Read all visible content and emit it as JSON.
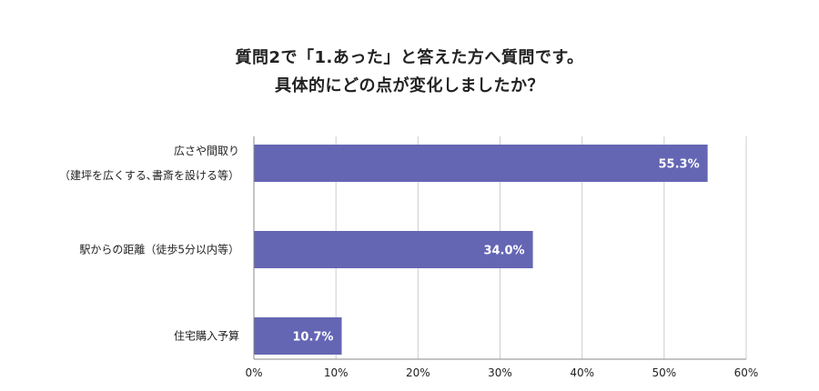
{
  "chart_data": {
    "type": "bar",
    "orientation": "horizontal",
    "title": [
      "質問2で「1.あった」と答えた方へ質問です。",
      "具体的にどの点が変化しましたか？"
    ],
    "categories": [
      [
        "広さや間取り",
        "（建坪を広くする､書斎を設ける等）"
      ],
      [
        "駅からの距離（徒歩5分以内等）"
      ],
      [
        "住宅購入予算"
      ]
    ],
    "values": [
      55.3,
      34.0,
      10.7
    ],
    "data_labels": [
      "55.3%",
      "34.0%",
      "10.7%"
    ],
    "xlim": [
      0,
      60
    ],
    "ticks": [
      0,
      10,
      20,
      30,
      40,
      50,
      60
    ],
    "tick_labels": [
      "0%",
      "10%",
      "20%",
      "30%",
      "40%",
      "50%",
      "60%"
    ],
    "grid": true,
    "colors": {
      "bar": "#6466b4",
      "grid": "#cccccc",
      "axis": "#888888"
    }
  }
}
